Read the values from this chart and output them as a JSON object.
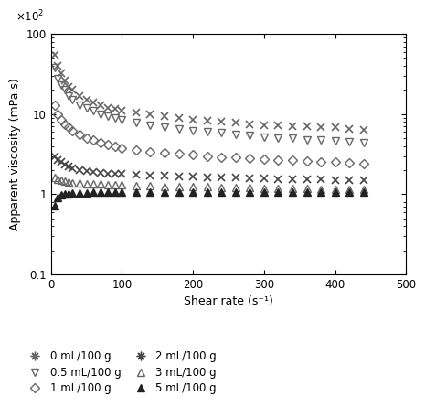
{
  "title": "",
  "xlabel": "Shear rate (s⁻¹)",
  "ylabel": "Apparent viscosity (mPa.s)",
  "xlim": [
    0,
    500
  ],
  "ylim_log": [
    0.1,
    100
  ],
  "background_color": "#ffffff",
  "series": [
    {
      "label": "0 mL/100 g",
      "marker": "x",
      "color": "#666666",
      "mfc": "none",
      "ms": 6,
      "mew": 1.2,
      "x": [
        5,
        10,
        15,
        20,
        25,
        30,
        40,
        50,
        60,
        70,
        80,
        90,
        100,
        120,
        140,
        160,
        180,
        200,
        220,
        240,
        260,
        280,
        300,
        320,
        340,
        360,
        380,
        400,
        420,
        440
      ],
      "y": [
        55,
        40,
        32,
        26,
        22,
        20,
        17,
        15,
        14,
        13,
        12,
        11.5,
        11,
        10.5,
        10,
        9.5,
        9,
        8.5,
        8.2,
        8,
        7.8,
        7.5,
        7.3,
        7.2,
        7,
        7,
        6.8,
        6.8,
        6.5,
        6.3
      ]
    },
    {
      "label": "0.5 mL/100 g",
      "marker": "v",
      "color": "#666666",
      "mfc": "none",
      "ms": 6,
      "mew": 1.0,
      "x": [
        5,
        10,
        15,
        20,
        25,
        30,
        40,
        50,
        60,
        70,
        80,
        90,
        100,
        120,
        140,
        160,
        180,
        200,
        220,
        240,
        260,
        280,
        300,
        320,
        340,
        360,
        380,
        400,
        420,
        440
      ],
      "y": [
        38,
        28,
        23,
        20,
        17,
        15,
        13,
        12,
        11,
        10,
        9.5,
        9,
        8.5,
        7.8,
        7.3,
        6.8,
        6.5,
        6.2,
        6,
        5.8,
        5.6,
        5.4,
        5.2,
        5,
        5,
        4.8,
        4.7,
        4.6,
        4.5,
        4.4
      ]
    },
    {
      "label": "1 mL/100 g",
      "marker": "D",
      "color": "#666666",
      "mfc": "none",
      "ms": 5,
      "mew": 1.0,
      "x": [
        5,
        10,
        15,
        20,
        25,
        30,
        40,
        50,
        60,
        70,
        80,
        90,
        100,
        120,
        140,
        160,
        180,
        200,
        220,
        240,
        260,
        280,
        300,
        320,
        340,
        360,
        380,
        400,
        420,
        440
      ],
      "y": [
        13,
        10,
        8.5,
        7.5,
        6.8,
        6.2,
        5.5,
        5,
        4.7,
        4.4,
        4.2,
        4,
        3.8,
        3.6,
        3.4,
        3.3,
        3.2,
        3.1,
        3,
        2.9,
        2.85,
        2.8,
        2.75,
        2.7,
        2.65,
        2.6,
        2.55,
        2.5,
        2.45,
        2.4
      ]
    },
    {
      "label": "2 mL/100 g",
      "marker": "x",
      "color": "#444444",
      "mfc": "none",
      "ms": 6,
      "mew": 1.2,
      "x": [
        5,
        10,
        15,
        20,
        25,
        30,
        40,
        50,
        60,
        70,
        80,
        90,
        100,
        120,
        140,
        160,
        180,
        200,
        220,
        240,
        260,
        280,
        300,
        320,
        340,
        360,
        380,
        400,
        420,
        440
      ],
      "y": [
        3.0,
        2.7,
        2.5,
        2.35,
        2.2,
        2.1,
        2.0,
        1.95,
        1.9,
        1.85,
        1.82,
        1.8,
        1.78,
        1.75,
        1.72,
        1.7,
        1.68,
        1.65,
        1.63,
        1.62,
        1.6,
        1.58,
        1.57,
        1.55,
        1.54,
        1.53,
        1.52,
        1.51,
        1.5,
        1.48
      ]
    },
    {
      "label": "3 mL/100 g",
      "marker": "^",
      "color": "#666666",
      "mfc": "none",
      "ms": 6,
      "mew": 1.0,
      "x": [
        5,
        10,
        15,
        20,
        25,
        30,
        40,
        50,
        60,
        70,
        80,
        90,
        100,
        120,
        140,
        160,
        180,
        200,
        220,
        240,
        260,
        280,
        300,
        320,
        340,
        360,
        380,
        400,
        420,
        440
      ],
      "y": [
        1.6,
        1.55,
        1.5,
        1.45,
        1.42,
        1.4,
        1.38,
        1.36,
        1.35,
        1.33,
        1.32,
        1.31,
        1.3,
        1.28,
        1.27,
        1.26,
        1.25,
        1.24,
        1.23,
        1.22,
        1.21,
        1.2,
        1.19,
        1.18,
        1.17,
        1.17,
        1.16,
        1.16,
        1.15,
        1.15
      ]
    },
    {
      "label": "5 mL/100 g",
      "marker": "^",
      "color": "#222222",
      "mfc": "#222222",
      "ms": 6,
      "mew": 1.0,
      "x": [
        5,
        10,
        15,
        20,
        25,
        30,
        40,
        50,
        60,
        70,
        80,
        90,
        100,
        120,
        140,
        160,
        180,
        200,
        220,
        240,
        260,
        280,
        300,
        320,
        340,
        360,
        380,
        400,
        420,
        440
      ],
      "y": [
        0.72,
        0.92,
        0.98,
        1.0,
        1.02,
        1.03,
        1.04,
        1.04,
        1.05,
        1.05,
        1.05,
        1.05,
        1.05,
        1.05,
        1.05,
        1.05,
        1.05,
        1.05,
        1.05,
        1.05,
        1.05,
        1.05,
        1.05,
        1.05,
        1.05,
        1.05,
        1.05,
        1.05,
        1.05,
        1.05
      ]
    }
  ]
}
